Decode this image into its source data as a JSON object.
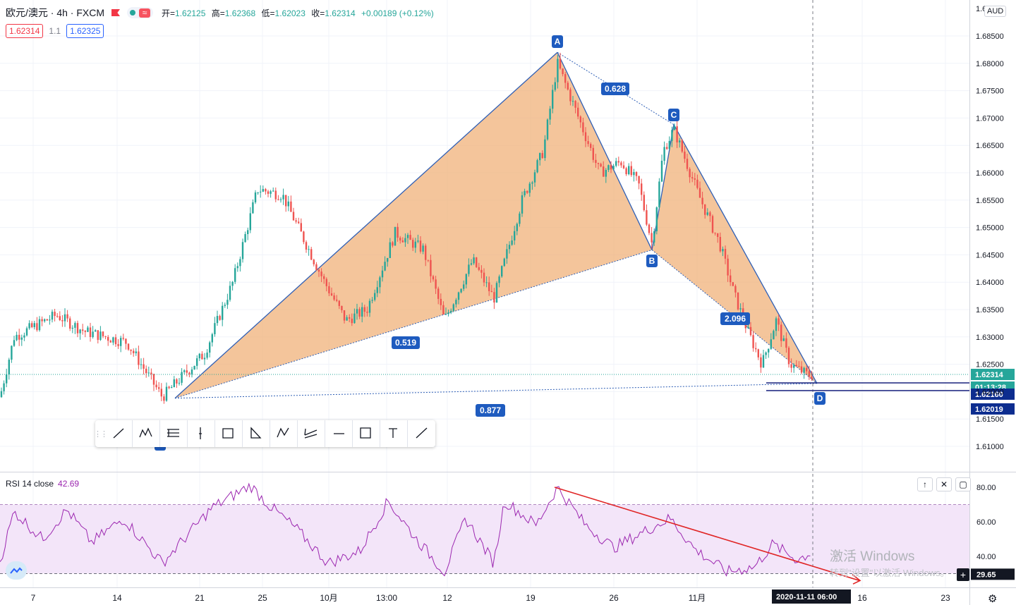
{
  "header": {
    "symbol": "欧元/澳元 · 4h · FXCM",
    "ohlc": {
      "open_label": "开=",
      "open": "1.62125",
      "high_label": "高=",
      "high": "1.62368",
      "low_label": "低=",
      "low": "1.62023",
      "close_label": "收=",
      "close": "1.62314",
      "change": "+0.00189 (+0.12%)"
    },
    "sell_price": "1.62314",
    "spread": "1.1",
    "buy_price": "1.62325",
    "currency": "AUD"
  },
  "colors": {
    "up": "#26a69a",
    "down": "#ef5350",
    "pattern_fill": "#f0b27a",
    "pattern_line": "#2f5fb5",
    "point_label_bg": "#1e5bbf",
    "rsi_line": "#9c27b0",
    "rsi_band": "#f3e5f9",
    "trend_line": "#e02525"
  },
  "price_axis": {
    "ticks": [
      "1.68500",
      "1.68000",
      "1.67500",
      "1.67000",
      "1.66500",
      "1.66000",
      "1.65500",
      "1.65000",
      "1.64500",
      "1.64000",
      "1.63500",
      "1.63000",
      "1.62500",
      "1.62000",
      "1.61500",
      "1.61000"
    ],
    "top_partial": "1.69",
    "labels": {
      "last_price": "1.62314",
      "countdown": "01:13:28",
      "line_high": "1.62160",
      "line_low": "1.62019"
    }
  },
  "pattern": {
    "points": [
      "A",
      "B",
      "C",
      "D"
    ],
    "ratios": {
      "xb": "0.519",
      "ac": "0.628",
      "bd": "2.096",
      "xd": "0.877"
    }
  },
  "rsi": {
    "label": "RSI 14 close",
    "value": "42.69",
    "ticks": [
      "80.00",
      "60.00",
      "40.00"
    ],
    "current_label": "29.65"
  },
  "time_axis": {
    "ticks": [
      "7",
      "14",
      "21",
      "25",
      "10月",
      "13:00",
      "12",
      "19",
      "26",
      "11月",
      "16",
      "23"
    ],
    "cursor_date": "2020-11-11",
    "cursor_time": "06:00"
  },
  "drawing_toolbar": {
    "tools": [
      "trend-line-icon",
      "xabcd-pattern-icon",
      "fib-retracement-icon",
      "vertical-line-icon",
      "rectangle-tool-icon",
      "triangle-tool-icon",
      "abcd-pattern-icon",
      "pitchfork-icon",
      "horizontal-ray-icon",
      "price-range-icon",
      "text-tool-icon",
      "ray-icon"
    ]
  },
  "watermark": {
    "line1": "激活 Windows",
    "line2": "转到\"设置\"以激活 Windows。"
  }
}
